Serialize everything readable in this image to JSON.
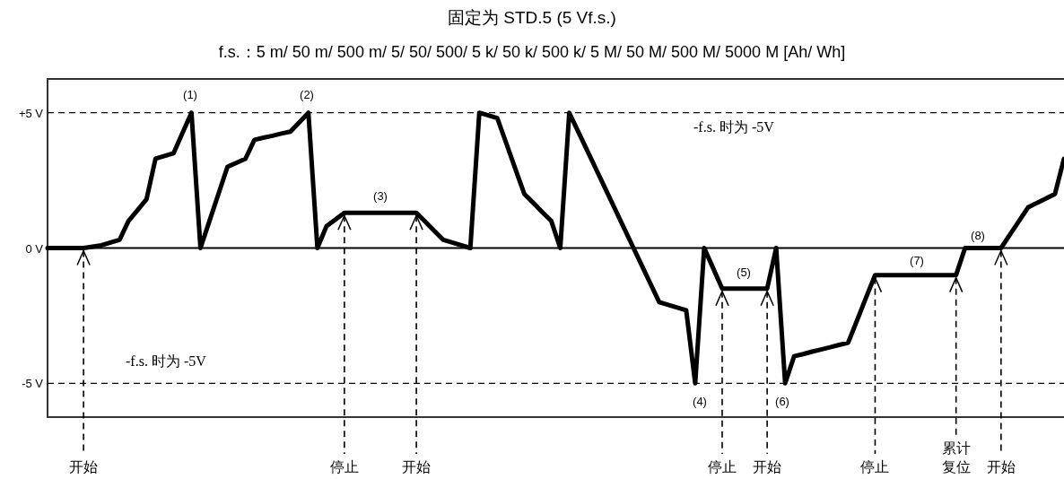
{
  "chart_data": {
    "type": "line",
    "title": "固定为 STD.5 (5 Vf.s.)",
    "subtitle": "f.s.：5 m/ 50 m/ 500 m/ 5/ 50/ 500/ 5 k/ 50 k/ 500 k/ 5 M/ 50 M/ 500 M/ 5000 M [Ah/ Wh]",
    "categories": [
      null,
      null,
      null,
      null,
      "开始",
      null,
      null,
      null,
      null,
      null,
      null,
      null,
      null,
      null,
      null,
      null,
      null,
      null,
      null,
      null,
      null,
      null,
      null,
      null,
      null,
      null,
      null,
      null,
      null,
      null,
      null,
      null,
      null,
      "停止",
      null,
      null,
      null,
      null,
      null,
      null,
      null,
      "开始",
      null,
      null,
      null,
      null,
      null,
      null,
      null,
      null,
      null,
      null,
      null,
      null,
      null,
      null,
      null,
      null,
      null,
      null,
      null,
      null,
      null,
      null,
      null,
      null,
      null,
      null,
      null,
      null,
      null,
      null,
      null,
      null,
      null,
      "停止",
      null,
      null,
      null,
      null,
      "开始",
      null,
      null,
      null,
      null,
      null,
      null,
      null,
      null,
      null,
      null,
      null,
      "停止",
      null,
      null,
      null,
      null,
      null,
      null,
      null,
      null,
      "累计复位",
      null,
      null,
      null,
      null,
      "开始",
      null,
      null,
      null,
      null,
      null,
      null,
      null
    ],
    "series": [
      {
        "color": "#000000",
        "values": [
          0,
          0,
          0,
          0,
          0,
          0.05,
          0.1,
          0.2,
          0.3,
          1.0,
          1.4,
          1.8,
          3.3,
          3.4,
          3.5,
          4.25,
          5,
          0,
          1.0,
          2.0,
          3.0,
          3.15,
          3.3,
          4.0,
          4.08,
          4.15,
          4.23,
          4.3,
          4.65,
          5,
          0,
          0.8,
          1.05,
          1.3,
          1.3,
          1.3,
          1.3,
          1.3,
          1.3,
          1.3,
          1.3,
          1.3,
          0.97,
          0.63,
          0.3,
          0.2,
          0.1,
          0,
          5,
          4.9,
          4.8,
          3.87,
          2.93,
          2.0,
          1.67,
          1.33,
          1.0,
          0,
          5,
          4.3,
          3.6,
          2.9,
          2.2,
          1.5,
          0.8,
          0.1,
          -0.6,
          -1.3,
          -2.0,
          -2.1,
          -2.2,
          -2.3,
          -5,
          0,
          -0.75,
          -1.5,
          -1.5,
          -1.5,
          -1.5,
          -1.5,
          -1.5,
          0,
          -5,
          -4.0,
          -3.92,
          -3.83,
          -3.75,
          -3.67,
          -3.58,
          -3.5,
          -2.67,
          -1.83,
          -1.0,
          -1.0,
          -1.0,
          -1.0,
          -1.0,
          -1.0,
          -1.0,
          -1.0,
          -1.0,
          -1.0,
          0,
          0,
          0,
          0,
          0,
          0.5,
          1.0,
          1.5,
          1.67,
          1.83,
          2.0,
          3.3
        ]
      }
    ],
    "ylim": [
      -6.25,
      6.25
    ],
    "yticks": [
      {
        "value": 5,
        "label": "+5 V"
      },
      {
        "value": 0,
        "label": "0 V"
      },
      {
        "value": -5,
        "label": "-5 V"
      }
    ],
    "marker": "none",
    "line_style": "solid",
    "ref_lines": [
      {
        "axis": "y",
        "value": 5,
        "line_style": "dashed",
        "color": "#000000"
      },
      {
        "axis": "y",
        "value": 0,
        "line_style": "solid",
        "color": "#000000"
      },
      {
        "axis": "y",
        "value": -5,
        "line_style": "dashed",
        "color": "#000000"
      }
    ],
    "annotations": [
      "-f.s. 时为 -5V",
      "-f.s. 时为 -5V",
      "(1)",
      "(2)",
      "(3)",
      "(4)",
      "(5)",
      "(6)",
      "(7)",
      "(8)"
    ]
  }
}
